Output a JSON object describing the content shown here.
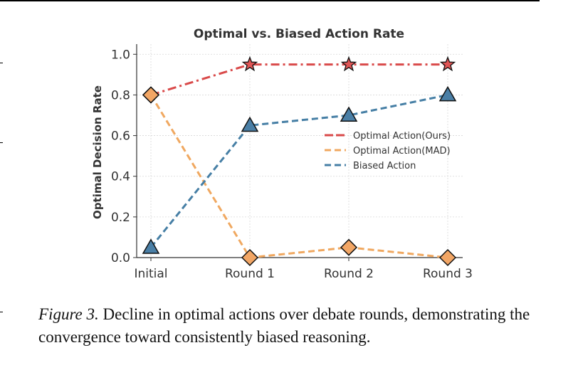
{
  "chart_data": {
    "type": "line",
    "title": "Optimal vs. Biased Action Rate",
    "xlabel": "",
    "ylabel": "Optimal Decision Rate",
    "categories": [
      "Initial",
      "Round 1",
      "Round 2",
      "Round 3"
    ],
    "ylim": [
      0.0,
      1.05
    ],
    "yticks": [
      "0.0",
      "0.2",
      "0.4",
      "0.6",
      "0.8",
      "1.0"
    ],
    "grid": true,
    "legend_position": "center-right",
    "series": [
      {
        "name": "Optimal Action(Ours)",
        "values": [
          0.8,
          0.95,
          0.95,
          0.95
        ],
        "color": "#d94a4a",
        "line": "dash-dot",
        "marker_first": "diamond",
        "marker": "star",
        "marker_fill": "#e05555"
      },
      {
        "name": "Optimal Action(MAD)",
        "values": [
          0.8,
          0.0,
          0.05,
          0.0
        ],
        "color": "#f0a860",
        "line": "dashed",
        "marker": "diamond",
        "marker_fill": "#f2a665"
      },
      {
        "name": "Biased Action",
        "values": [
          0.05,
          0.65,
          0.7,
          0.8
        ],
        "color": "#467fa5",
        "line": "dashed",
        "marker": "triangle",
        "marker_fill": "#4a7fa6"
      }
    ]
  },
  "caption": {
    "label": "Figure 3.",
    "text": " Decline in optimal actions over debate rounds, demonstrating the convergence toward consistently biased reasoning."
  }
}
